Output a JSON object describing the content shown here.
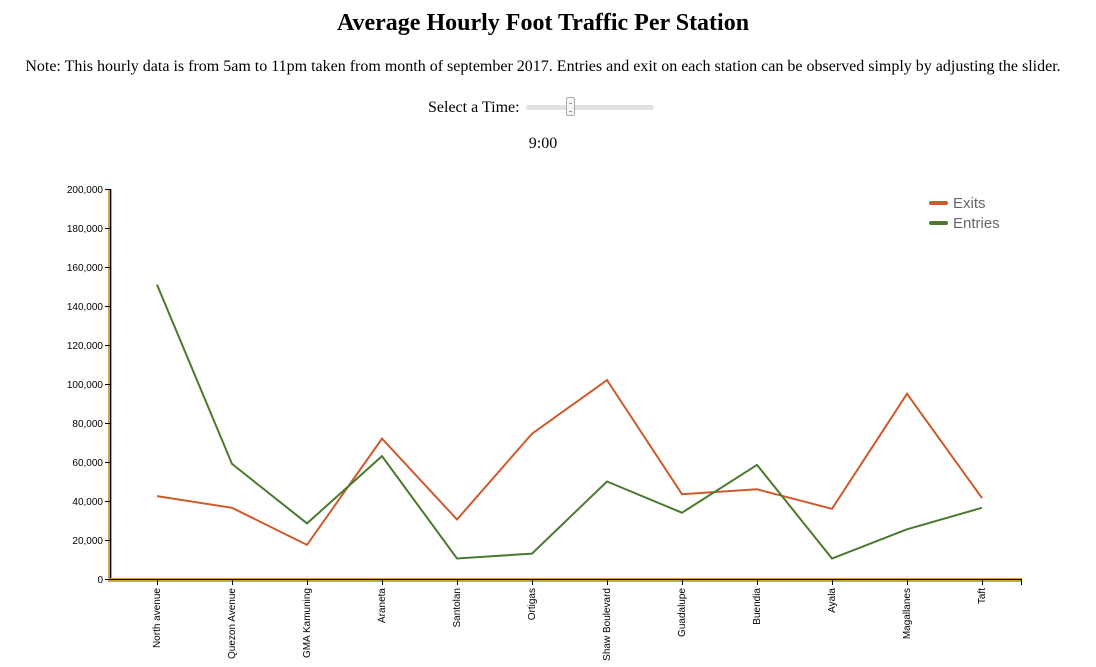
{
  "page": {
    "title": "Average Hourly Foot Traffic Per Station",
    "note": "Note: This hourly data is from 5am to 11pm taken from month of september 2017. Entries and exit on each station can be observed simply by adjusting the slider.",
    "slider": {
      "label": "Select a Time:",
      "min_hour": 5,
      "max_hour": 23,
      "value_hour": 9,
      "display": "9:00"
    }
  },
  "colors": {
    "exits": "#cc5a2b",
    "entries": "#4b7a2e",
    "axis": "#d4a04a"
  },
  "chart_data": {
    "type": "line",
    "title": "",
    "xlabel": "",
    "ylabel": "",
    "ylim": [
      0,
      200000
    ],
    "y_ticks": [
      0,
      20000,
      40000,
      60000,
      80000,
      100000,
      120000,
      140000,
      160000,
      180000,
      200000
    ],
    "y_tick_labels": [
      "0",
      "20,000",
      "40,000",
      "60,000",
      "80,000",
      "100,000",
      "120,000",
      "140,000",
      "160,000",
      "180,000",
      "200,000"
    ],
    "categories": [
      "North avenue",
      "Quezon Avenue",
      "GMA Kamuning",
      "Araneta",
      "Santolan",
      "Ortigas",
      "Shaw Boulevard",
      "Guadalupe",
      "Buendia",
      "Ayala",
      "Magallanes",
      "Taft"
    ],
    "series": [
      {
        "name": "Exits",
        "key": "exits",
        "values": [
          42500,
          36500,
          17500,
          72000,
          30500,
          74500,
          102000,
          43500,
          46000,
          36000,
          95000,
          41500
        ]
      },
      {
        "name": "Entries",
        "key": "entries",
        "values": [
          151000,
          59000,
          28500,
          63000,
          10500,
          13000,
          50000,
          34000,
          58500,
          10500,
          25500,
          36500
        ]
      }
    ],
    "legend": "top-right",
    "grid": false
  }
}
